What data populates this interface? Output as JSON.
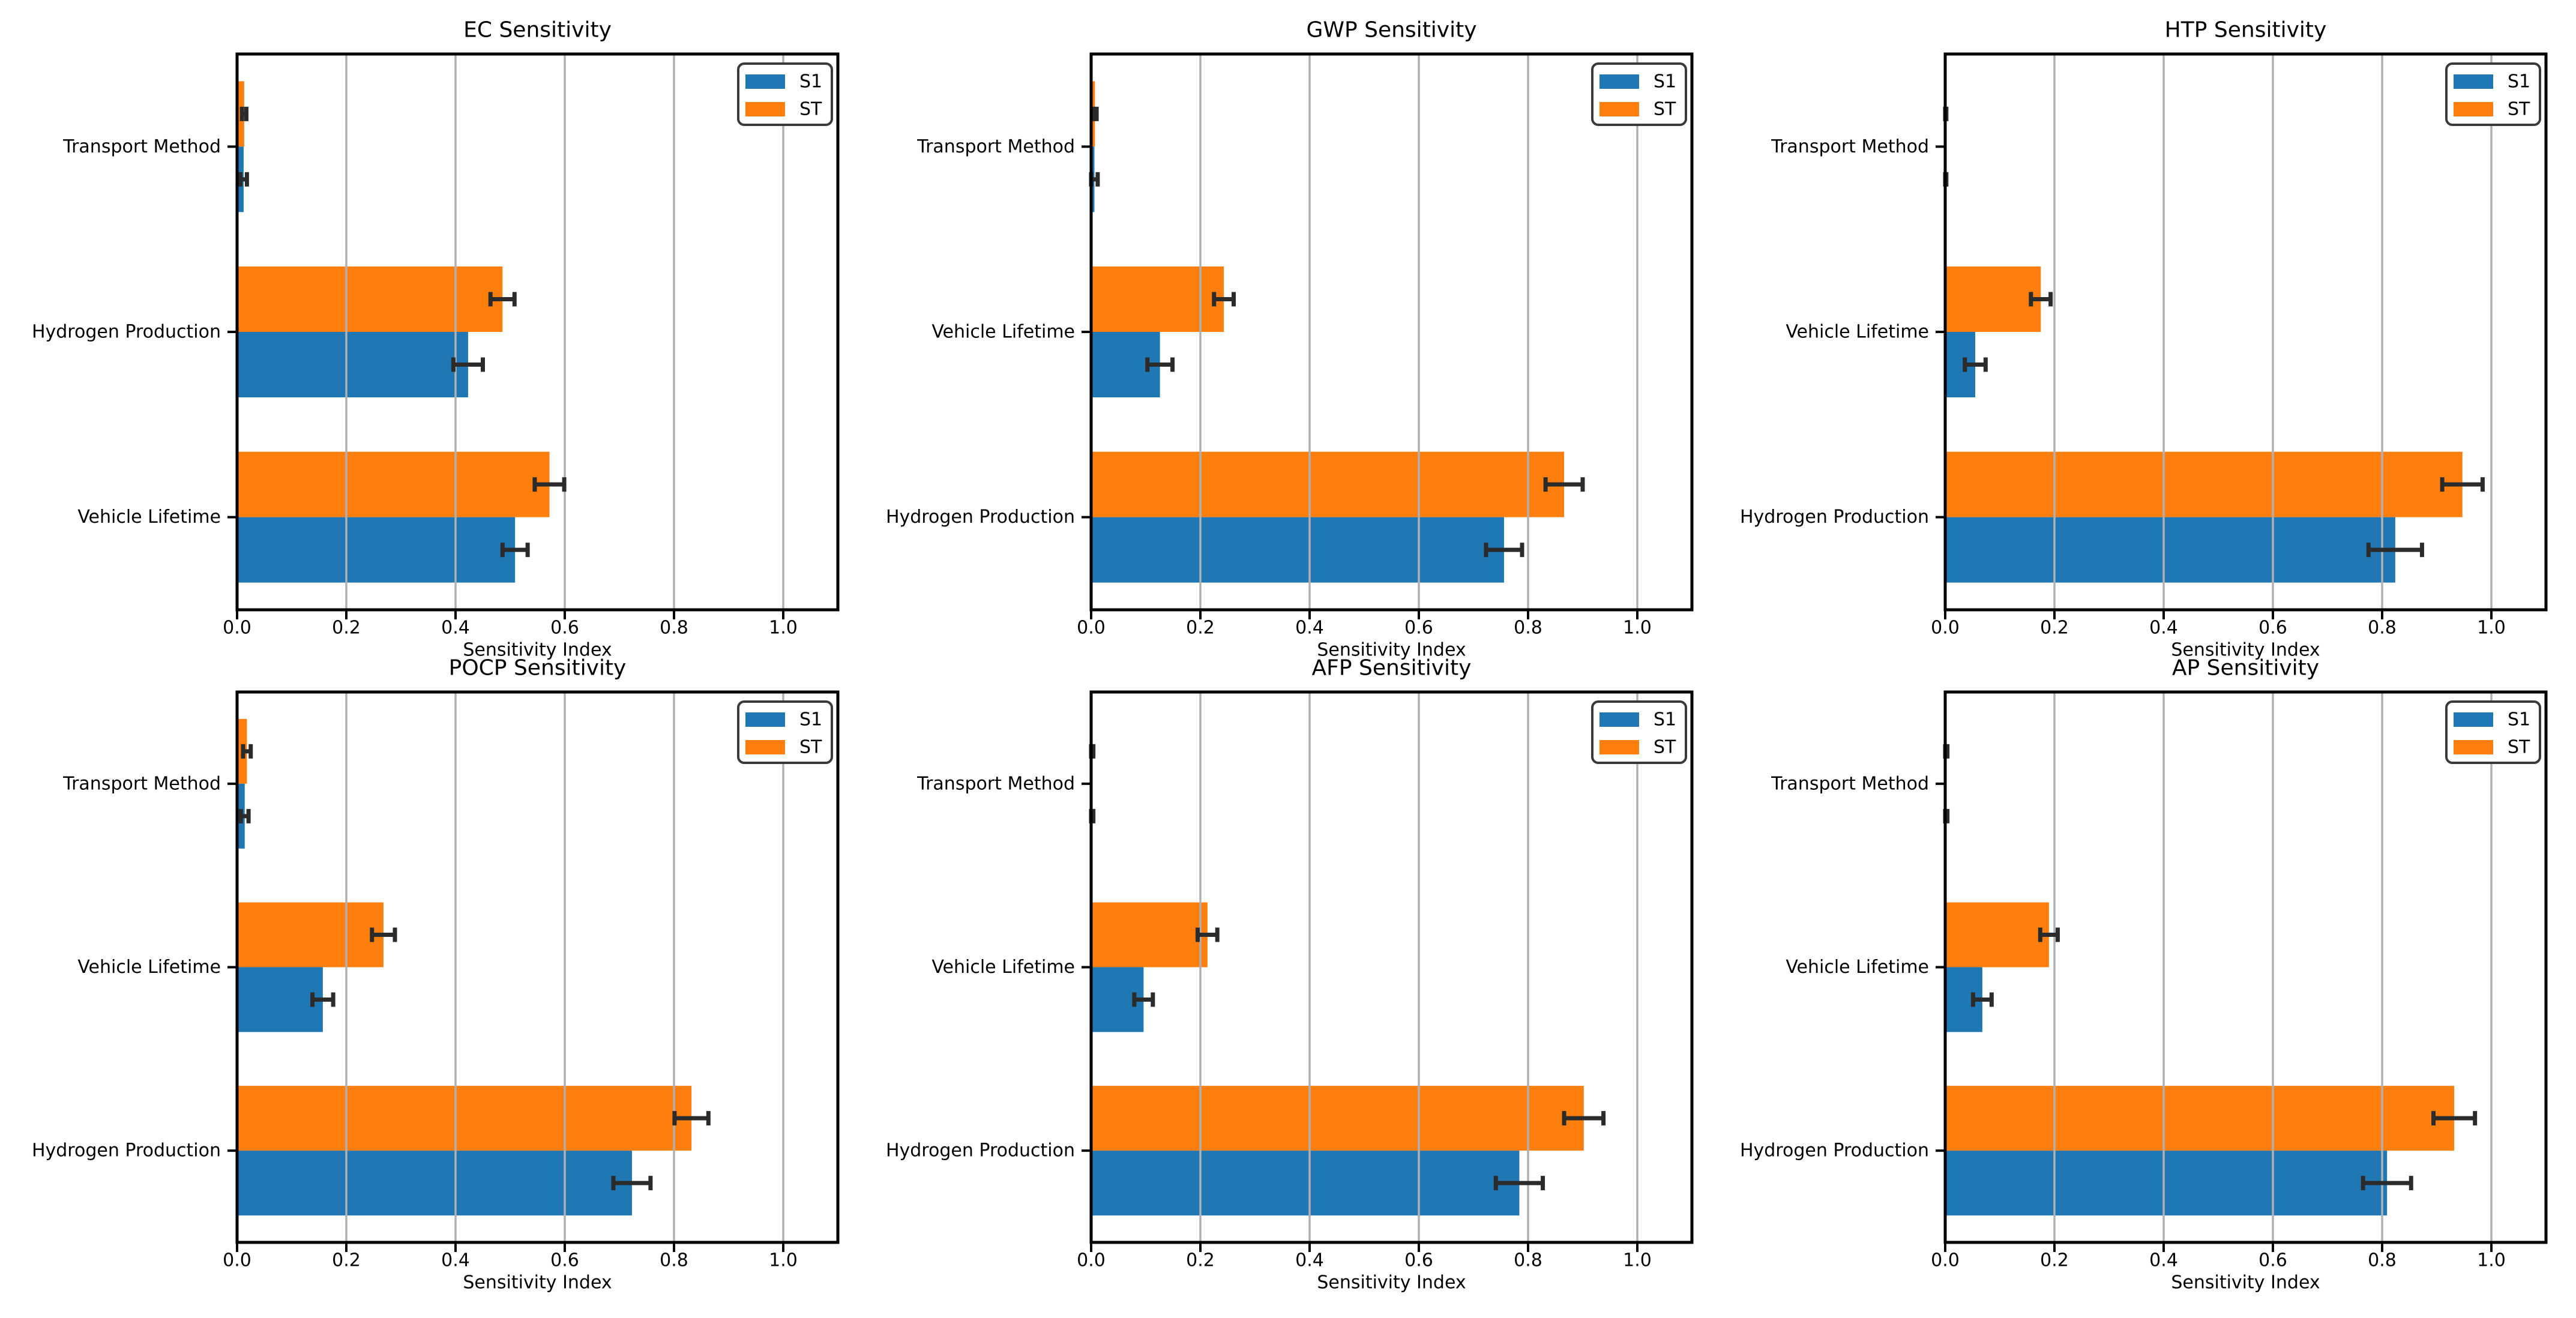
{
  "figure": {
    "background": "#ffffff",
    "axis": {
      "xlabel": "Sensitivity Index",
      "xtick_labels": [
        "0.0",
        "0.2",
        "0.4",
        "0.6",
        "0.8",
        "1.0"
      ],
      "xtick_values": [
        0.0,
        0.2,
        0.4,
        0.6,
        0.8,
        1.0
      ],
      "xlim": [
        0.0,
        1.1
      ],
      "grid": true,
      "grid_color": "#b0b0b0",
      "spine_color": "#000000"
    },
    "legend": {
      "position": "upper right",
      "entries": [
        {
          "label": "S1",
          "color": "#1f77b4"
        },
        {
          "label": "ST",
          "color": "#ff7f0e"
        }
      ]
    },
    "colors": {
      "s1": "#1f77b4",
      "st": "#ff7f0e",
      "errorbar": "#2b2b2b"
    }
  },
  "chart_data": [
    {
      "id": "ec",
      "type": "bar",
      "orientation": "horizontal",
      "title": "EC Sensitivity",
      "xlabel": "Sensitivity Index",
      "category_order": "top_to_bottom",
      "categories": [
        "Transport Method",
        "Hydrogen Production",
        "Vehicle Lifetime"
      ],
      "series": [
        {
          "name": "ST",
          "color": "#ff7f0e",
          "values": [
            0.013,
            0.486,
            0.572
          ],
          "errors": [
            0.004,
            0.022,
            0.027
          ]
        },
        {
          "name": "S1",
          "color": "#1f77b4",
          "values": [
            0.012,
            0.423,
            0.509
          ],
          "errors": [
            0.006,
            0.027,
            0.023
          ]
        }
      ]
    },
    {
      "id": "gwp",
      "type": "bar",
      "orientation": "horizontal",
      "title": "GWP Sensitivity",
      "xlabel": "Sensitivity Index",
      "category_order": "top_to_bottom",
      "categories": [
        "Transport Method",
        "Vehicle Lifetime",
        "Hydrogen Production"
      ],
      "series": [
        {
          "name": "ST",
          "color": "#ff7f0e",
          "values": [
            0.007,
            0.243,
            0.866
          ],
          "errors": [
            0.003,
            0.018,
            0.034
          ]
        },
        {
          "name": "S1",
          "color": "#1f77b4",
          "values": [
            0.006,
            0.126,
            0.756
          ],
          "errors": [
            0.006,
            0.023,
            0.033
          ]
        }
      ]
    },
    {
      "id": "htp",
      "type": "bar",
      "orientation": "horizontal",
      "title": "HTP Sensitivity",
      "xlabel": "Sensitivity Index",
      "category_order": "top_to_bottom",
      "categories": [
        "Transport Method",
        "Vehicle Lifetime",
        "Hydrogen Production"
      ],
      "series": [
        {
          "name": "ST",
          "color": "#ff7f0e",
          "values": [
            0.001,
            0.175,
            0.947
          ],
          "errors": [
            0.001,
            0.018,
            0.037
          ]
        },
        {
          "name": "S1",
          "color": "#1f77b4",
          "values": [
            0.001,
            0.055,
            0.824
          ],
          "errors": [
            0.001,
            0.019,
            0.049
          ]
        }
      ]
    },
    {
      "id": "pocp",
      "type": "bar",
      "orientation": "horizontal",
      "title": "POCP Sensitivity",
      "xlabel": "Sensitivity Index",
      "category_order": "top_to_bottom",
      "categories": [
        "Transport Method",
        "Vehicle Lifetime",
        "Hydrogen Production"
      ],
      "series": [
        {
          "name": "ST",
          "color": "#ff7f0e",
          "values": [
            0.018,
            0.268,
            0.832
          ],
          "errors": [
            0.007,
            0.021,
            0.031
          ]
        },
        {
          "name": "S1",
          "color": "#1f77b4",
          "values": [
            0.014,
            0.157,
            0.723
          ],
          "errors": [
            0.007,
            0.019,
            0.034
          ]
        }
      ]
    },
    {
      "id": "afp",
      "type": "bar",
      "orientation": "horizontal",
      "title": "AFP Sensitivity",
      "xlabel": "Sensitivity Index",
      "category_order": "top_to_bottom",
      "categories": [
        "Transport Method",
        "Vehicle Lifetime",
        "Hydrogen Production"
      ],
      "series": [
        {
          "name": "ST",
          "color": "#ff7f0e",
          "values": [
            0.002,
            0.213,
            0.902
          ],
          "errors": [
            0.002,
            0.018,
            0.036
          ]
        },
        {
          "name": "S1",
          "color": "#1f77b4",
          "values": [
            0.002,
            0.096,
            0.784
          ],
          "errors": [
            0.002,
            0.017,
            0.043
          ]
        }
      ]
    },
    {
      "id": "ap",
      "type": "bar",
      "orientation": "horizontal",
      "title": "AP Sensitivity",
      "xlabel": "Sensitivity Index",
      "category_order": "top_to_bottom",
      "categories": [
        "Transport Method",
        "Vehicle Lifetime",
        "Hydrogen Production"
      ],
      "series": [
        {
          "name": "ST",
          "color": "#ff7f0e",
          "values": [
            0.002,
            0.19,
            0.932
          ],
          "errors": [
            0.002,
            0.016,
            0.038
          ]
        },
        {
          "name": "S1",
          "color": "#1f77b4",
          "values": [
            0.002,
            0.068,
            0.809
          ],
          "errors": [
            0.002,
            0.017,
            0.044
          ]
        }
      ]
    }
  ]
}
